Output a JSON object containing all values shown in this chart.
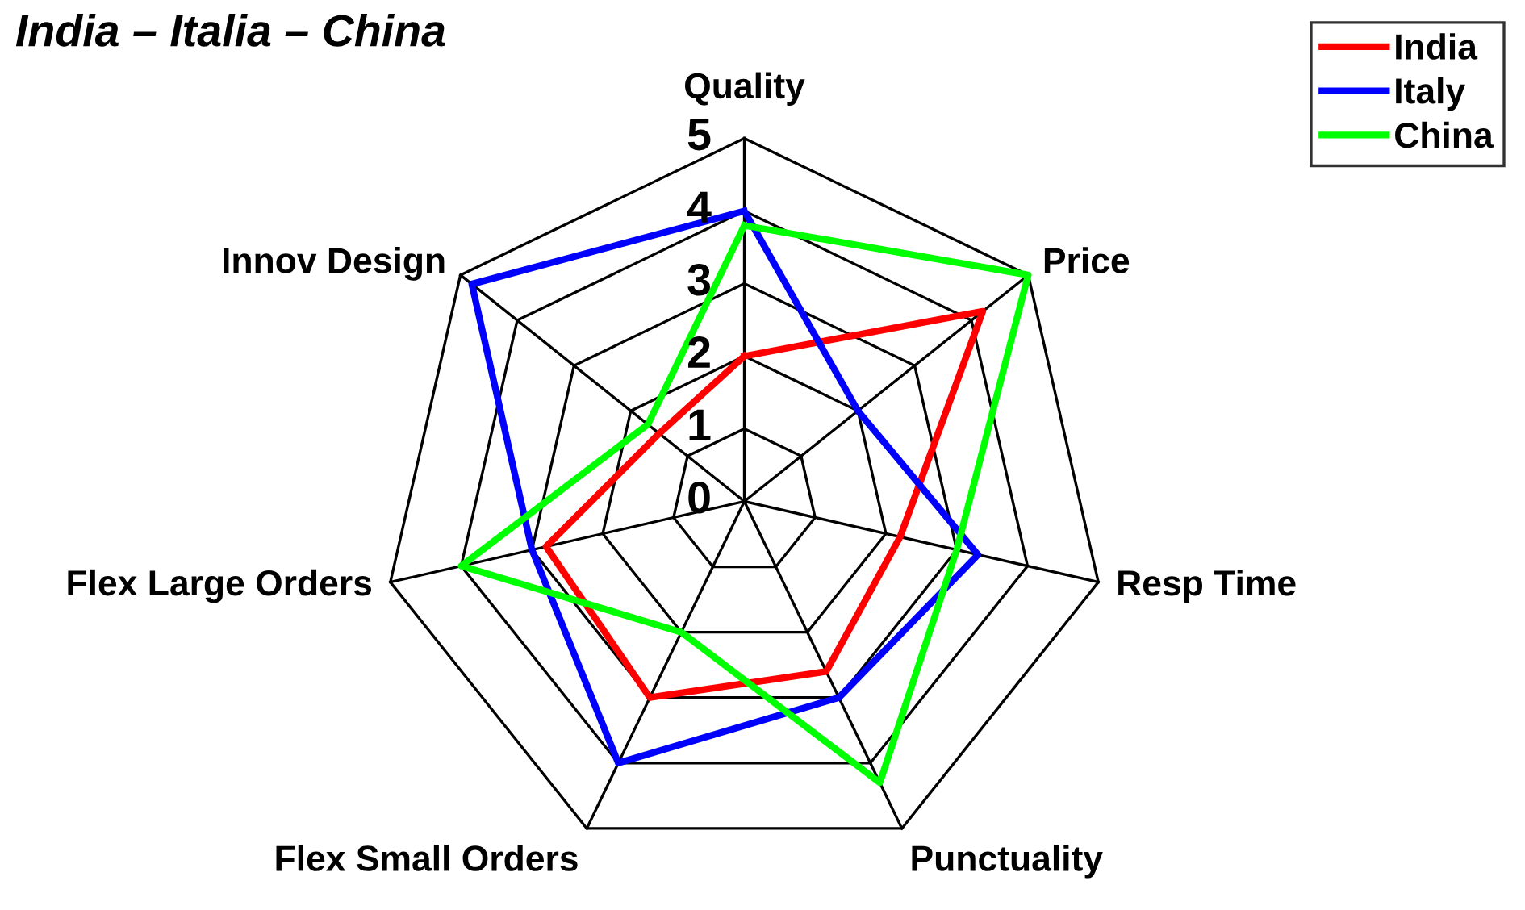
{
  "chart_data": {
    "type": "radar",
    "title": "India – Italia – China",
    "categories": [
      "Quality",
      "Price",
      "Resp Time",
      "Punctuality",
      "Flex Small Orders",
      "Flex Large Orders",
      "Innov Design"
    ],
    "series": [
      {
        "name": "India",
        "color": "#ff0000",
        "values": [
          2,
          4.2,
          2.2,
          2.6,
          3,
          2.8,
          1.5
        ]
      },
      {
        "name": "Italy",
        "color": "#0000ff",
        "values": [
          4,
          2,
          3.3,
          3,
          4,
          3,
          4.8
        ]
      },
      {
        "name": "China",
        "color": "#00ff00",
        "values": [
          3.8,
          5,
          3,
          4.3,
          2,
          4,
          1.7
        ]
      }
    ],
    "ylim": [
      0,
      5
    ],
    "yticks": [
      0,
      1,
      2,
      3,
      4,
      5
    ],
    "legend": "top right",
    "grid": true
  }
}
